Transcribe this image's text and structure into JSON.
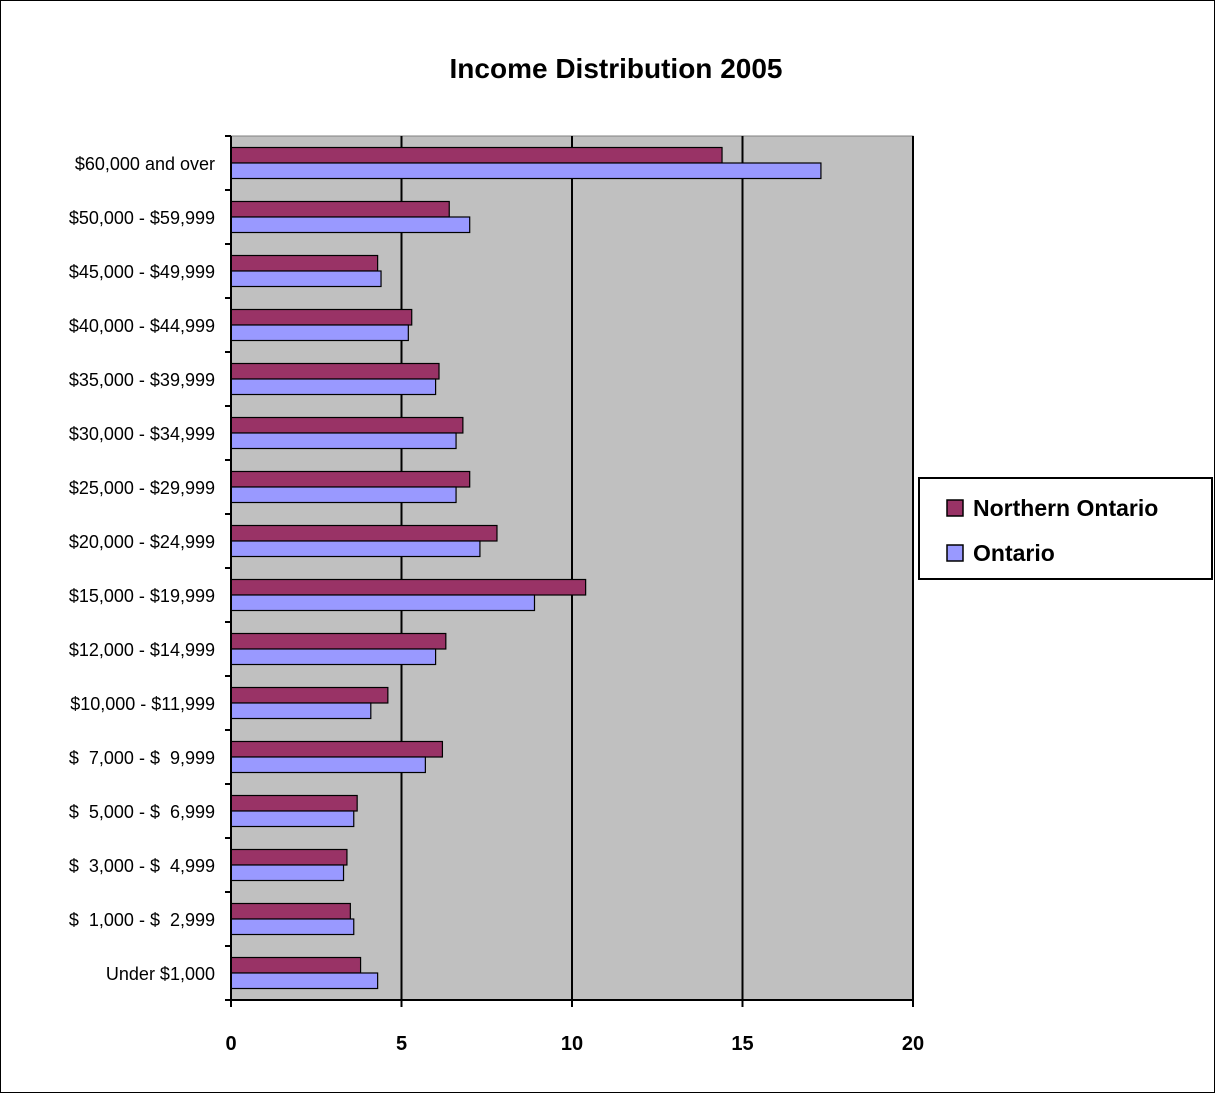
{
  "chart_data": {
    "type": "bar",
    "orientation": "horizontal",
    "title": "Income Distribution 2005",
    "xlabel": "",
    "ylabel": "",
    "xlim": [
      0,
      20
    ],
    "x_ticks": [
      0,
      5,
      10,
      15,
      20
    ],
    "grid": "vertical major gridlines",
    "plot_background": "#c0c0c0",
    "legend_position": "right",
    "categories": [
      "Under $1,000",
      "$  1,000 - $  2,999",
      "$  3,000 - $  4,999",
      "$  5,000 - $  6,999",
      "$  7,000 - $  9,999",
      "$10,000 - $11,999",
      "$12,000 - $14,999",
      "$15,000 - $19,999",
      "$20,000 - $24,999",
      "$25,000 - $29,999",
      "$30,000 - $34,999",
      "$35,000 - $39,999",
      "$40,000 - $44,999",
      "$45,000 - $49,999",
      "$50,000 - $59,999",
      "$60,000 and over"
    ],
    "series": [
      {
        "name": "Northern Ontario",
        "color": "#993366",
        "values": [
          3.8,
          3.5,
          3.4,
          3.7,
          6.2,
          4.6,
          6.3,
          10.4,
          7.8,
          7.0,
          6.8,
          6.1,
          5.3,
          4.3,
          6.4,
          14.4
        ]
      },
      {
        "name": "Ontario",
        "color": "#9999ff",
        "values": [
          4.3,
          3.6,
          3.3,
          3.6,
          5.7,
          4.1,
          6.0,
          8.9,
          7.3,
          6.6,
          6.6,
          6.0,
          5.2,
          4.4,
          7.0,
          17.3
        ]
      }
    ]
  }
}
